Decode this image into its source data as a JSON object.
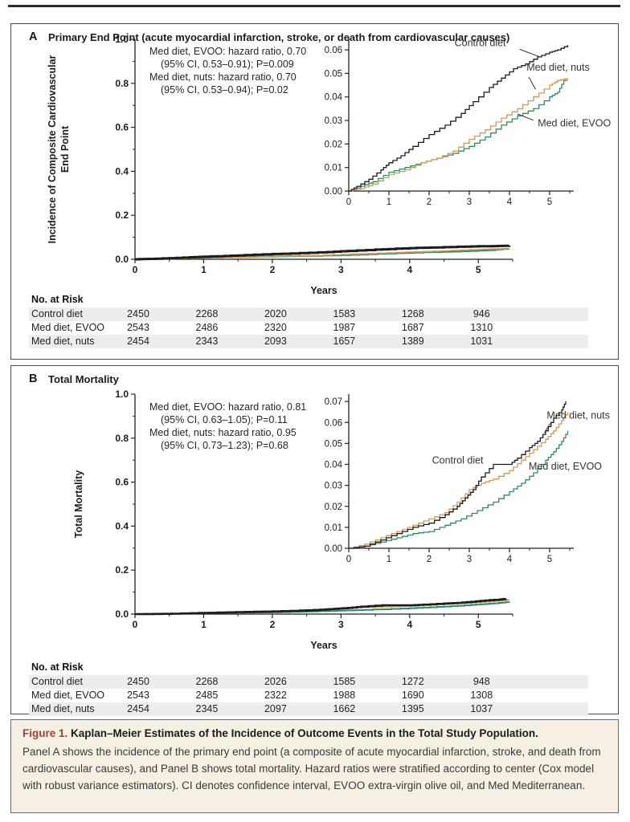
{
  "figure": {
    "caption_label": "Figure 1.",
    "caption_title": "Kaplan–Meier Estimates of the Incidence of Outcome Events in the Total Study Population.",
    "caption_body": "Panel A shows the incidence of the primary end point (a composite of acute myocardial infarction, stroke, and death from cardiovascular causes), and Panel B shows total mortality. Hazard ratios were stratified according to center (Cox model with robust variance estimators). CI denotes confidence interval, EVOO extra-virgin olive oil, and Med Mediterranean."
  },
  "colors": {
    "control": "#1c1c1c",
    "evoo": "#2e8b62",
    "nuts": "#cf9a55",
    "row_shade": "#eeedeb",
    "caption_bg": "#f6efe3",
    "figure_label_red": "#a23f38",
    "axis": "#222222"
  },
  "chart_data": [
    {
      "panel": "A",
      "type": "line",
      "title": "Primary End Point (acute myocardial infarction, stroke, or death from cardiovascular causes)",
      "xlabel": "Years",
      "ylabel_lines": [
        "Incidence of Composite Cardiovascular",
        "End Point"
      ],
      "main_axis": {
        "xlim": [
          0,
          5.5
        ],
        "ylim": [
          0,
          1
        ],
        "xticks": [
          0,
          1,
          2,
          3,
          4,
          5
        ],
        "yticks": [
          0,
          0.2,
          0.4,
          0.6,
          0.8,
          1
        ],
        "ydecimals": 1,
        "x_minor_step": 0.5,
        "y_minor_step": 0.1
      },
      "inset_axis": {
        "xlim": [
          0,
          5.6
        ],
        "ylim": [
          0,
          0.0655
        ],
        "xticks": [
          0,
          1,
          2,
          3,
          4,
          5
        ],
        "yticks": [
          0,
          0.01,
          0.02,
          0.03,
          0.04,
          0.05,
          0.06
        ],
        "ydecimals": 2,
        "x_minor_step": 0.5
      },
      "annotation_lines": [
        "Med diet, EVOO: hazard ratio, 0.70",
        "(95% CI, 0.53–0.91); P=0.009",
        "Med diet, nuts: hazard ratio, 0.70",
        "(95% CI, 0.53–0.94);  P=0.02"
      ],
      "series": [
        {
          "name": "Control diet",
          "color": "control",
          "main_width": 3,
          "points": [
            [
              0,
              0
            ],
            [
              0.2,
              0.002
            ],
            [
              0.5,
              0.005
            ],
            [
              0.8,
              0.009
            ],
            [
              1,
              0.012
            ],
            [
              1.3,
              0.015
            ],
            [
              1.6,
              0.019
            ],
            [
              2,
              0.024
            ],
            [
              2.4,
              0.028
            ],
            [
              2.8,
              0.033
            ],
            [
              3.1,
              0.038
            ],
            [
              3.5,
              0.044
            ],
            [
              3.8,
              0.048
            ],
            [
              4.1,
              0.052
            ],
            [
              4.4,
              0.054
            ],
            [
              4.7,
              0.057
            ],
            [
              5,
              0.059
            ],
            [
              5.2,
              0.06
            ],
            [
              5.45,
              0.062
            ]
          ]
        },
        {
          "name": "Med diet, nuts",
          "color": "nuts",
          "main_width": 1.6,
          "points": [
            [
              0,
              0
            ],
            [
              0.3,
              0.001
            ],
            [
              0.6,
              0.003
            ],
            [
              1,
              0.007
            ],
            [
              1.4,
              0.009
            ],
            [
              1.8,
              0.012
            ],
            [
              2.2,
              0.014
            ],
            [
              2.6,
              0.017
            ],
            [
              3,
              0.022
            ],
            [
              3.4,
              0.026
            ],
            [
              3.8,
              0.031
            ],
            [
              4.2,
              0.035
            ],
            [
              4.6,
              0.04
            ],
            [
              5,
              0.045
            ],
            [
              5.2,
              0.047
            ],
            [
              5.45,
              0.048
            ]
          ]
        },
        {
          "name": "Med diet, EVOO",
          "color": "evoo",
          "main_width": 2.2,
          "points": [
            [
              0,
              0
            ],
            [
              0.3,
              0.002
            ],
            [
              0.6,
              0.004
            ],
            [
              1,
              0.008
            ],
            [
              1.4,
              0.01
            ],
            [
              1.8,
              0.012
            ],
            [
              2.2,
              0.014
            ],
            [
              2.6,
              0.016
            ],
            [
              3,
              0.019
            ],
            [
              3.4,
              0.023
            ],
            [
              3.8,
              0.028
            ],
            [
              4.2,
              0.032
            ],
            [
              4.6,
              0.035
            ],
            [
              5,
              0.04
            ],
            [
              5.2,
              0.042
            ],
            [
              5.35,
              0.047
            ],
            [
              5.45,
              0.047
            ]
          ]
        }
      ],
      "inset_labels": [
        {
          "text": "Control diet",
          "fx": 0.47,
          "fy": 0.06,
          "leader": [
            0.76,
            0.08,
            0.85,
            0.13
          ]
        },
        {
          "text": "Med diet, nuts",
          "fx": 0.79,
          "fy": 0.22,
          "leader": [
            0.8,
            0.26,
            0.83,
            0.34
          ]
        },
        {
          "text": "Med diet, EVOO",
          "fx": 0.84,
          "fy": 0.58,
          "leader": [
            0.82,
            0.54,
            0.75,
            0.5
          ]
        }
      ],
      "risk_table": {
        "header": "No. at Risk",
        "rows": [
          {
            "label": "Control diet",
            "shaded": true,
            "values": [
              "2450",
              "2268",
              "2020",
              "1583",
              "1268",
              "946"
            ]
          },
          {
            "label": "Med diet, EVOO",
            "shaded": false,
            "values": [
              "2543",
              "2486",
              "2320",
              "1987",
              "1687",
              "1310"
            ]
          },
          {
            "label": "Med diet, nuts",
            "shaded": true,
            "values": [
              "2454",
              "2343",
              "2093",
              "1657",
              "1389",
              "1031"
            ]
          }
        ]
      }
    },
    {
      "panel": "B",
      "type": "line",
      "title": "Total Mortality",
      "xlabel": "Years",
      "ylabel_lines": [
        "Total Mortality"
      ],
      "main_axis": {
        "xlim": [
          0,
          5.5
        ],
        "ylim": [
          0,
          1
        ],
        "xticks": [
          0,
          1,
          2,
          3,
          4,
          5
        ],
        "yticks": [
          0,
          0.2,
          0.4,
          0.6,
          0.8,
          1
        ],
        "ydecimals": 1,
        "x_minor_step": 0.5,
        "y_minor_step": 0.1
      },
      "inset_axis": {
        "xlim": [
          0,
          5.6
        ],
        "ylim": [
          0,
          0.0735
        ],
        "xticks": [
          0,
          1,
          2,
          3,
          4,
          5
        ],
        "yticks": [
          0,
          0.01,
          0.02,
          0.03,
          0.04,
          0.05,
          0.06,
          0.07
        ],
        "ydecimals": 2,
        "x_minor_step": 0.5
      },
      "annotation_lines": [
        "Med diet, EVOO: hazard ratio, 0.81",
        "(95% CI, 0.63–1.05); P=0.11",
        "Med diet, nuts: hazard ratio, 0.95",
        "(95% CI, 0.73–1.23);  P=0.68"
      ],
      "series": [
        {
          "name": "Control diet",
          "color": "control",
          "main_width": 2.6,
          "points": [
            [
              0,
              0
            ],
            [
              0.4,
              0.001
            ],
            [
              0.8,
              0.004
            ],
            [
              1.2,
              0.007
            ],
            [
              1.6,
              0.01
            ],
            [
              2,
              0.012
            ],
            [
              2.4,
              0.016
            ],
            [
              2.7,
              0.02
            ],
            [
              2.9,
              0.024
            ],
            [
              3.1,
              0.028
            ],
            [
              3.3,
              0.034
            ],
            [
              3.6,
              0.04
            ],
            [
              4,
              0.04
            ],
            [
              4.2,
              0.043
            ],
            [
              4.5,
              0.048
            ],
            [
              4.7,
              0.051
            ],
            [
              4.9,
              0.056
            ],
            [
              5.1,
              0.062
            ],
            [
              5.3,
              0.066
            ],
            [
              5.4,
              0.07
            ]
          ]
        },
        {
          "name": "Med diet, nuts",
          "color": "nuts",
          "main_width": 1.6,
          "points": [
            [
              0,
              0
            ],
            [
              0.4,
              0.002
            ],
            [
              0.8,
              0.005
            ],
            [
              1.2,
              0.008
            ],
            [
              1.6,
              0.011
            ],
            [
              2,
              0.014
            ],
            [
              2.4,
              0.017
            ],
            [
              2.7,
              0.022
            ],
            [
              3,
              0.028
            ],
            [
              3.3,
              0.031
            ],
            [
              3.6,
              0.033
            ],
            [
              4,
              0.037
            ],
            [
              4.3,
              0.042
            ],
            [
              4.6,
              0.047
            ],
            [
              4.9,
              0.052
            ],
            [
              5.1,
              0.056
            ],
            [
              5.3,
              0.061
            ],
            [
              5.45,
              0.065
            ]
          ]
        },
        {
          "name": "Med diet, EVOO",
          "color": "evoo",
          "main_width": 2,
          "points": [
            [
              0,
              0
            ],
            [
              0.4,
              0.001
            ],
            [
              0.8,
              0.003
            ],
            [
              1.2,
              0.005
            ],
            [
              1.6,
              0.007
            ],
            [
              2,
              0.008
            ],
            [
              2.4,
              0.011
            ],
            [
              2.8,
              0.014
            ],
            [
              3.2,
              0.018
            ],
            [
              3.6,
              0.022
            ],
            [
              4,
              0.027
            ],
            [
              4.3,
              0.031
            ],
            [
              4.6,
              0.036
            ],
            [
              4.9,
              0.042
            ],
            [
              5.1,
              0.046
            ],
            [
              5.3,
              0.051
            ],
            [
              5.45,
              0.056
            ]
          ]
        }
      ],
      "inset_labels": [
        {
          "text": "Control diet",
          "fx": 0.37,
          "fy": 0.45,
          "leader": null
        },
        {
          "text": "Med diet, nuts",
          "fx": 0.88,
          "fy": 0.16,
          "leader": [
            0.895,
            0.19,
            0.87,
            0.25
          ]
        },
        {
          "text": "Med diet, EVOO",
          "fx": 0.8,
          "fy": 0.49,
          "leader": null
        }
      ],
      "risk_table": {
        "header": "No. at Risk",
        "rows": [
          {
            "label": "Control diet",
            "shaded": true,
            "values": [
              "2450",
              "2268",
              "2026",
              "1585",
              "1272",
              "948"
            ]
          },
          {
            "label": "Med diet, EVOO",
            "shaded": false,
            "values": [
              "2543",
              "2485",
              "2322",
              "1988",
              "1690",
              "1308"
            ]
          },
          {
            "label": "Med diet, nuts",
            "shaded": true,
            "values": [
              "2454",
              "2345",
              "2097",
              "1662",
              "1395",
              "1037"
            ]
          }
        ]
      }
    }
  ]
}
